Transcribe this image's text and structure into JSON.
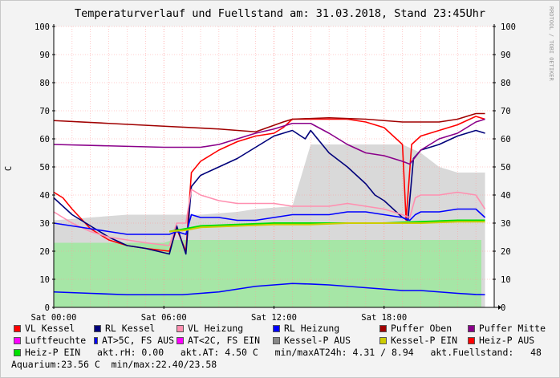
{
  "colors": {
    "vl_kessel": "#ff0000",
    "rl_kessel": "#00007a",
    "vl_heizung": "#ff8fb0",
    "rl_heizung": "#0000ff",
    "puffer_oben": "#a00000",
    "puffer_mitte": "#8a008a",
    "luftfeuchte": "#ff00ff",
    "at_warm": "#0000ff",
    "at_cold": "#ff00ff",
    "kessel_p_aus": "#888888",
    "kessel_p_ein": "#cccc00",
    "heiz_p_aus": "#ff0000",
    "heiz_p_ein": "#00e000",
    "area_kessel": "#d9d9d9",
    "area_heiz": "#a6e6a6",
    "grid": "#ff9999"
  },
  "chart_data": {
    "type": "line",
    "title": "Temperaturverlauf und Fuellstand am: 31.03.2018, Stand 23:45Uhr",
    "ylabel": "C",
    "side_label": "RRDTOOL / TOBI OETIKER",
    "ylim": [
      0,
      100
    ],
    "yticks": [
      0,
      10,
      20,
      30,
      40,
      50,
      60,
      70,
      80,
      90,
      100
    ],
    "xlim": [
      0,
      24
    ],
    "xticks": [
      {
        "h": 0,
        "label": "Sat 00:00"
      },
      {
        "h": 6,
        "label": "Sat 06:00"
      },
      {
        "h": 12,
        "label": "Sat 12:00"
      },
      {
        "h": 18,
        "label": "Sat 18:00"
      }
    ],
    "areas": [
      {
        "name": "Kessel-P AUS",
        "color_key": "area_kessel",
        "points": [
          [
            0,
            31
          ],
          [
            2,
            32
          ],
          [
            4,
            33
          ],
          [
            6,
            33
          ],
          [
            8,
            33
          ],
          [
            10,
            34
          ],
          [
            11,
            35
          ],
          [
            13,
            36
          ],
          [
            14,
            58
          ],
          [
            17,
            58
          ],
          [
            19,
            58
          ],
          [
            20,
            55
          ],
          [
            21,
            50
          ],
          [
            22,
            48
          ],
          [
            23.5,
            48
          ]
        ]
      },
      {
        "name": "Heiz-P EIN",
        "color_key": "area_heiz",
        "points": [
          [
            0,
            23
          ],
          [
            6,
            23
          ],
          [
            6.5,
            24
          ],
          [
            10,
            24
          ],
          [
            14,
            24
          ],
          [
            18,
            24
          ],
          [
            20,
            24
          ],
          [
            23.3,
            24
          ]
        ]
      }
    ],
    "series": [
      {
        "name": "VL Kessel",
        "color_key": "vl_kessel",
        "points": [
          [
            0,
            41
          ],
          [
            0.5,
            39
          ],
          [
            1,
            35
          ],
          [
            2,
            28
          ],
          [
            3,
            24
          ],
          [
            4,
            22
          ],
          [
            5,
            21
          ],
          [
            6.3,
            20
          ],
          [
            6.7,
            28
          ],
          [
            7.2,
            20
          ],
          [
            7.5,
            48
          ],
          [
            8,
            52
          ],
          [
            9,
            56
          ],
          [
            10,
            59
          ],
          [
            11,
            61
          ],
          [
            12,
            62
          ],
          [
            12.5,
            64
          ],
          [
            13,
            67
          ],
          [
            14,
            67
          ],
          [
            15,
            67
          ],
          [
            16,
            67
          ],
          [
            17,
            66
          ],
          [
            18,
            64
          ],
          [
            19,
            58
          ],
          [
            19.2,
            31
          ],
          [
            19.5,
            58
          ],
          [
            20,
            61
          ],
          [
            21,
            63
          ],
          [
            22,
            65
          ],
          [
            23,
            68
          ],
          [
            23.5,
            67
          ]
        ]
      },
      {
        "name": "RL Kessel",
        "color_key": "rl_kessel",
        "points": [
          [
            0,
            39
          ],
          [
            1,
            33
          ],
          [
            2,
            29
          ],
          [
            3,
            25
          ],
          [
            4,
            22
          ],
          [
            5,
            21
          ],
          [
            6.3,
            19
          ],
          [
            6.7,
            29
          ],
          [
            7.2,
            19
          ],
          [
            7.5,
            43
          ],
          [
            8,
            47
          ],
          [
            9,
            50
          ],
          [
            10,
            53
          ],
          [
            11,
            57
          ],
          [
            12,
            61
          ],
          [
            13,
            63
          ],
          [
            13.7,
            60
          ],
          [
            14,
            63
          ],
          [
            15,
            55
          ],
          [
            16,
            50
          ],
          [
            17,
            44
          ],
          [
            17.5,
            40
          ],
          [
            18,
            38
          ],
          [
            19,
            32
          ],
          [
            19.3,
            31
          ],
          [
            19.6,
            53
          ],
          [
            20,
            56
          ],
          [
            21,
            58
          ],
          [
            22,
            61
          ],
          [
            23,
            63
          ],
          [
            23.5,
            62
          ]
        ]
      },
      {
        "name": "VL Heizung",
        "color_key": "vl_heizung",
        "points": [
          [
            0,
            34
          ],
          [
            1,
            30
          ],
          [
            2,
            27
          ],
          [
            3,
            25
          ],
          [
            4,
            24
          ],
          [
            5,
            23
          ],
          [
            6.3,
            22
          ],
          [
            6.7,
            30
          ],
          [
            7.2,
            30
          ],
          [
            7.5,
            42
          ],
          [
            8,
            40
          ],
          [
            9,
            38
          ],
          [
            10,
            37
          ],
          [
            11,
            37
          ],
          [
            12,
            37
          ],
          [
            13,
            36
          ],
          [
            14,
            36
          ],
          [
            15,
            36
          ],
          [
            16,
            37
          ],
          [
            17,
            36
          ],
          [
            18,
            35
          ],
          [
            19,
            33
          ],
          [
            19.4,
            32
          ],
          [
            19.7,
            39
          ],
          [
            20,
            40
          ],
          [
            21,
            40
          ],
          [
            22,
            41
          ],
          [
            23,
            40
          ],
          [
            23.5,
            35
          ]
        ]
      },
      {
        "name": "RL Heizung",
        "color_key": "rl_heizung",
        "points": [
          [
            0,
            30
          ],
          [
            1,
            29
          ],
          [
            2,
            28
          ],
          [
            3,
            27
          ],
          [
            4,
            26
          ],
          [
            5,
            26
          ],
          [
            6.3,
            26
          ],
          [
            6.7,
            27
          ],
          [
            7.2,
            26
          ],
          [
            7.5,
            33
          ],
          [
            8,
            32
          ],
          [
            9,
            32
          ],
          [
            10,
            31
          ],
          [
            11,
            31
          ],
          [
            12,
            32
          ],
          [
            13,
            33
          ],
          [
            14,
            33
          ],
          [
            15,
            33
          ],
          [
            16,
            34
          ],
          [
            17,
            34
          ],
          [
            18,
            33
          ],
          [
            19,
            32
          ],
          [
            19.4,
            31
          ],
          [
            19.7,
            33
          ],
          [
            20,
            34
          ],
          [
            21,
            34
          ],
          [
            22,
            35
          ],
          [
            23,
            35
          ],
          [
            23.5,
            32
          ]
        ]
      },
      {
        "name": "Puffer Oben",
        "color_key": "puffer_oben",
        "points": [
          [
            0,
            66.5
          ],
          [
            3,
            65.5
          ],
          [
            6,
            64.5
          ],
          [
            9,
            63.5
          ],
          [
            11,
            62.5
          ],
          [
            12.5,
            66
          ],
          [
            13,
            67
          ],
          [
            15,
            67.5
          ],
          [
            17,
            67
          ],
          [
            19,
            66
          ],
          [
            21,
            66
          ],
          [
            22,
            67
          ],
          [
            23,
            69
          ],
          [
            23.5,
            69
          ]
        ]
      },
      {
        "name": "Puffer Mitte",
        "color_key": "puffer_mitte",
        "points": [
          [
            0,
            58
          ],
          [
            3,
            57.5
          ],
          [
            6,
            57
          ],
          [
            8,
            57
          ],
          [
            9,
            58
          ],
          [
            10,
            60
          ],
          [
            11,
            62
          ],
          [
            12,
            63.5
          ],
          [
            13,
            65.5
          ],
          [
            14,
            65.5
          ],
          [
            15,
            62
          ],
          [
            16,
            58
          ],
          [
            17,
            55
          ],
          [
            18,
            54
          ],
          [
            19,
            52
          ],
          [
            19.4,
            51
          ],
          [
            20,
            56
          ],
          [
            21,
            60
          ],
          [
            22,
            62
          ],
          [
            23,
            66
          ],
          [
            23.5,
            67
          ]
        ]
      },
      {
        "name": "Heiz-P EIN line",
        "color_key": "heiz_p_ein",
        "points": [
          [
            6.3,
            27
          ],
          [
            7.2,
            28
          ],
          [
            8,
            29
          ],
          [
            10,
            29.5
          ],
          [
            12,
            30
          ],
          [
            14,
            30
          ],
          [
            16,
            30
          ],
          [
            18,
            30
          ],
          [
            20,
            30.5
          ],
          [
            22,
            31
          ],
          [
            23.5,
            31
          ]
        ]
      },
      {
        "name": "Kessel-P EIN line",
        "color_key": "kessel_p_ein",
        "points": [
          [
            6.3,
            27
          ],
          [
            7.2,
            27.5
          ],
          [
            8,
            28.5
          ],
          [
            10,
            29
          ],
          [
            12,
            29.5
          ],
          [
            14,
            29.5
          ],
          [
            16,
            30
          ],
          [
            18,
            30
          ],
          [
            20,
            30
          ],
          [
            22,
            30.5
          ],
          [
            23.5,
            30.5
          ]
        ]
      },
      {
        "name": "Luftfeuchte",
        "color_key": "at_warm",
        "points": [
          [
            0,
            5.5
          ],
          [
            2,
            5
          ],
          [
            4,
            4.5
          ],
          [
            6,
            4.5
          ],
          [
            7,
            4.5
          ],
          [
            8,
            5
          ],
          [
            9,
            5.5
          ],
          [
            10,
            6.5
          ],
          [
            11,
            7.5
          ],
          [
            12,
            8
          ],
          [
            13,
            8.5
          ],
          [
            14,
            8.3
          ],
          [
            15,
            8
          ],
          [
            16,
            7.5
          ],
          [
            17,
            7
          ],
          [
            18,
            6.5
          ],
          [
            19,
            6
          ],
          [
            20,
            6
          ],
          [
            21,
            5.5
          ],
          [
            22,
            5
          ],
          [
            23,
            4.6
          ],
          [
            23.5,
            4.5
          ]
        ]
      }
    ]
  },
  "legend": {
    "rows": [
      [
        {
          "label": "VL Kessel",
          "color_key": "vl_kessel"
        },
        {
          "label": "RL Kessel",
          "color_key": "rl_kessel"
        },
        {
          "label": "VL Heizung",
          "color_key": "vl_heizung"
        },
        {
          "label": "RL Heizung",
          "color_key": "rl_heizung"
        },
        {
          "label": "Puffer Oben",
          "color_key": "puffer_oben"
        },
        {
          "label": "Puffer Mitte",
          "color_key": "puffer_mitte"
        }
      ],
      [
        {
          "label": "Luftfeuchte",
          "color_key": "luftfeuchte"
        },
        {
          "label": "AT>5C, FS AUS",
          "color_key": "at_warm"
        },
        {
          "label": "AT<2C, FS EIN",
          "color_key": "at_cold"
        },
        {
          "label": "Kessel-P AUS",
          "color_key": "kessel_p_aus"
        },
        {
          "label": "Kessel-P EIN",
          "color_key": "kessel_p_ein"
        },
        {
          "label": "Heiz-P AUS",
          "color_key": "heiz_p_aus"
        }
      ]
    ],
    "heiz_p_ein": {
      "label": "Heiz-P EIN",
      "color_key": "heiz_p_ein"
    },
    "info_row3": "akt.rH: 0.00   akt.AT: 4.50 C   min/maxAT24h: 4.31 / 8.94   akt.Fuellstand:   48",
    "info_row4": "Aquarium:23.56 C  min/max:22.40/23.58"
  }
}
